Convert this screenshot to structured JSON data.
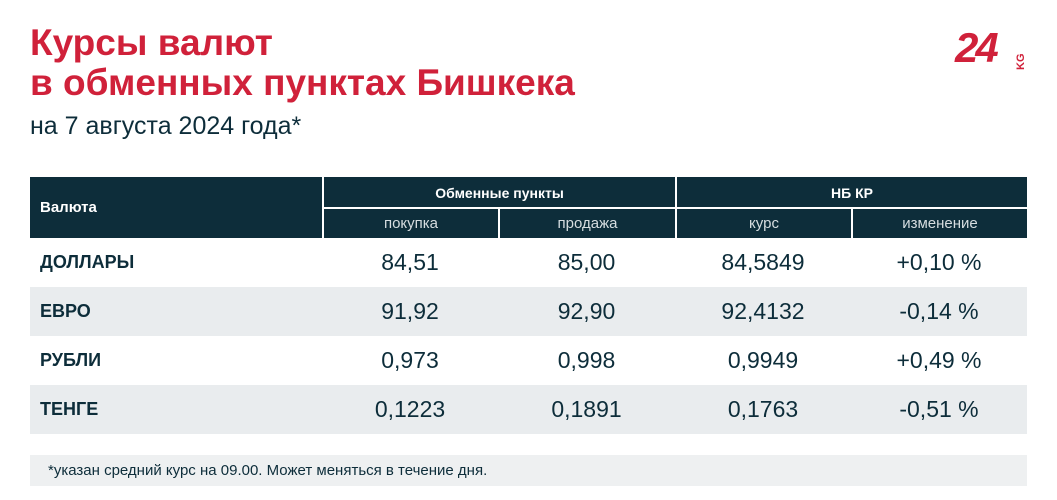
{
  "header": {
    "title_lines": [
      "Курсы валют",
      "в обменных пунктах Бишкека"
    ],
    "subtitle": "на 7 августа 2024 года*"
  },
  "logo": {
    "number": "24",
    "suffix": "KG"
  },
  "table": {
    "first_column": "Валюта",
    "groups": [
      {
        "label": "Обменные пункты",
        "subcolumns": [
          "покупка",
          "продажа"
        ]
      },
      {
        "label": "НБ КР",
        "subcolumns": [
          "курс",
          "изменение"
        ]
      }
    ],
    "rows": [
      [
        "ДОЛЛАРЫ",
        "84,51",
        "85,00",
        "84,5849",
        "+0,10 %"
      ],
      [
        "ЕВРО",
        "91,92",
        "92,90",
        "92,4132",
        "-0,14 %"
      ],
      [
        "РУБЛИ",
        "0,973",
        "0,998",
        "0,9949",
        "+0,49 %"
      ],
      [
        "ТЕНГЕ",
        "0,1223",
        "0,1891",
        "0,1763",
        "-0,51 %"
      ]
    ]
  },
  "footnote": "*указан средний курс на 09.00. Может меняться в течение дня."
}
